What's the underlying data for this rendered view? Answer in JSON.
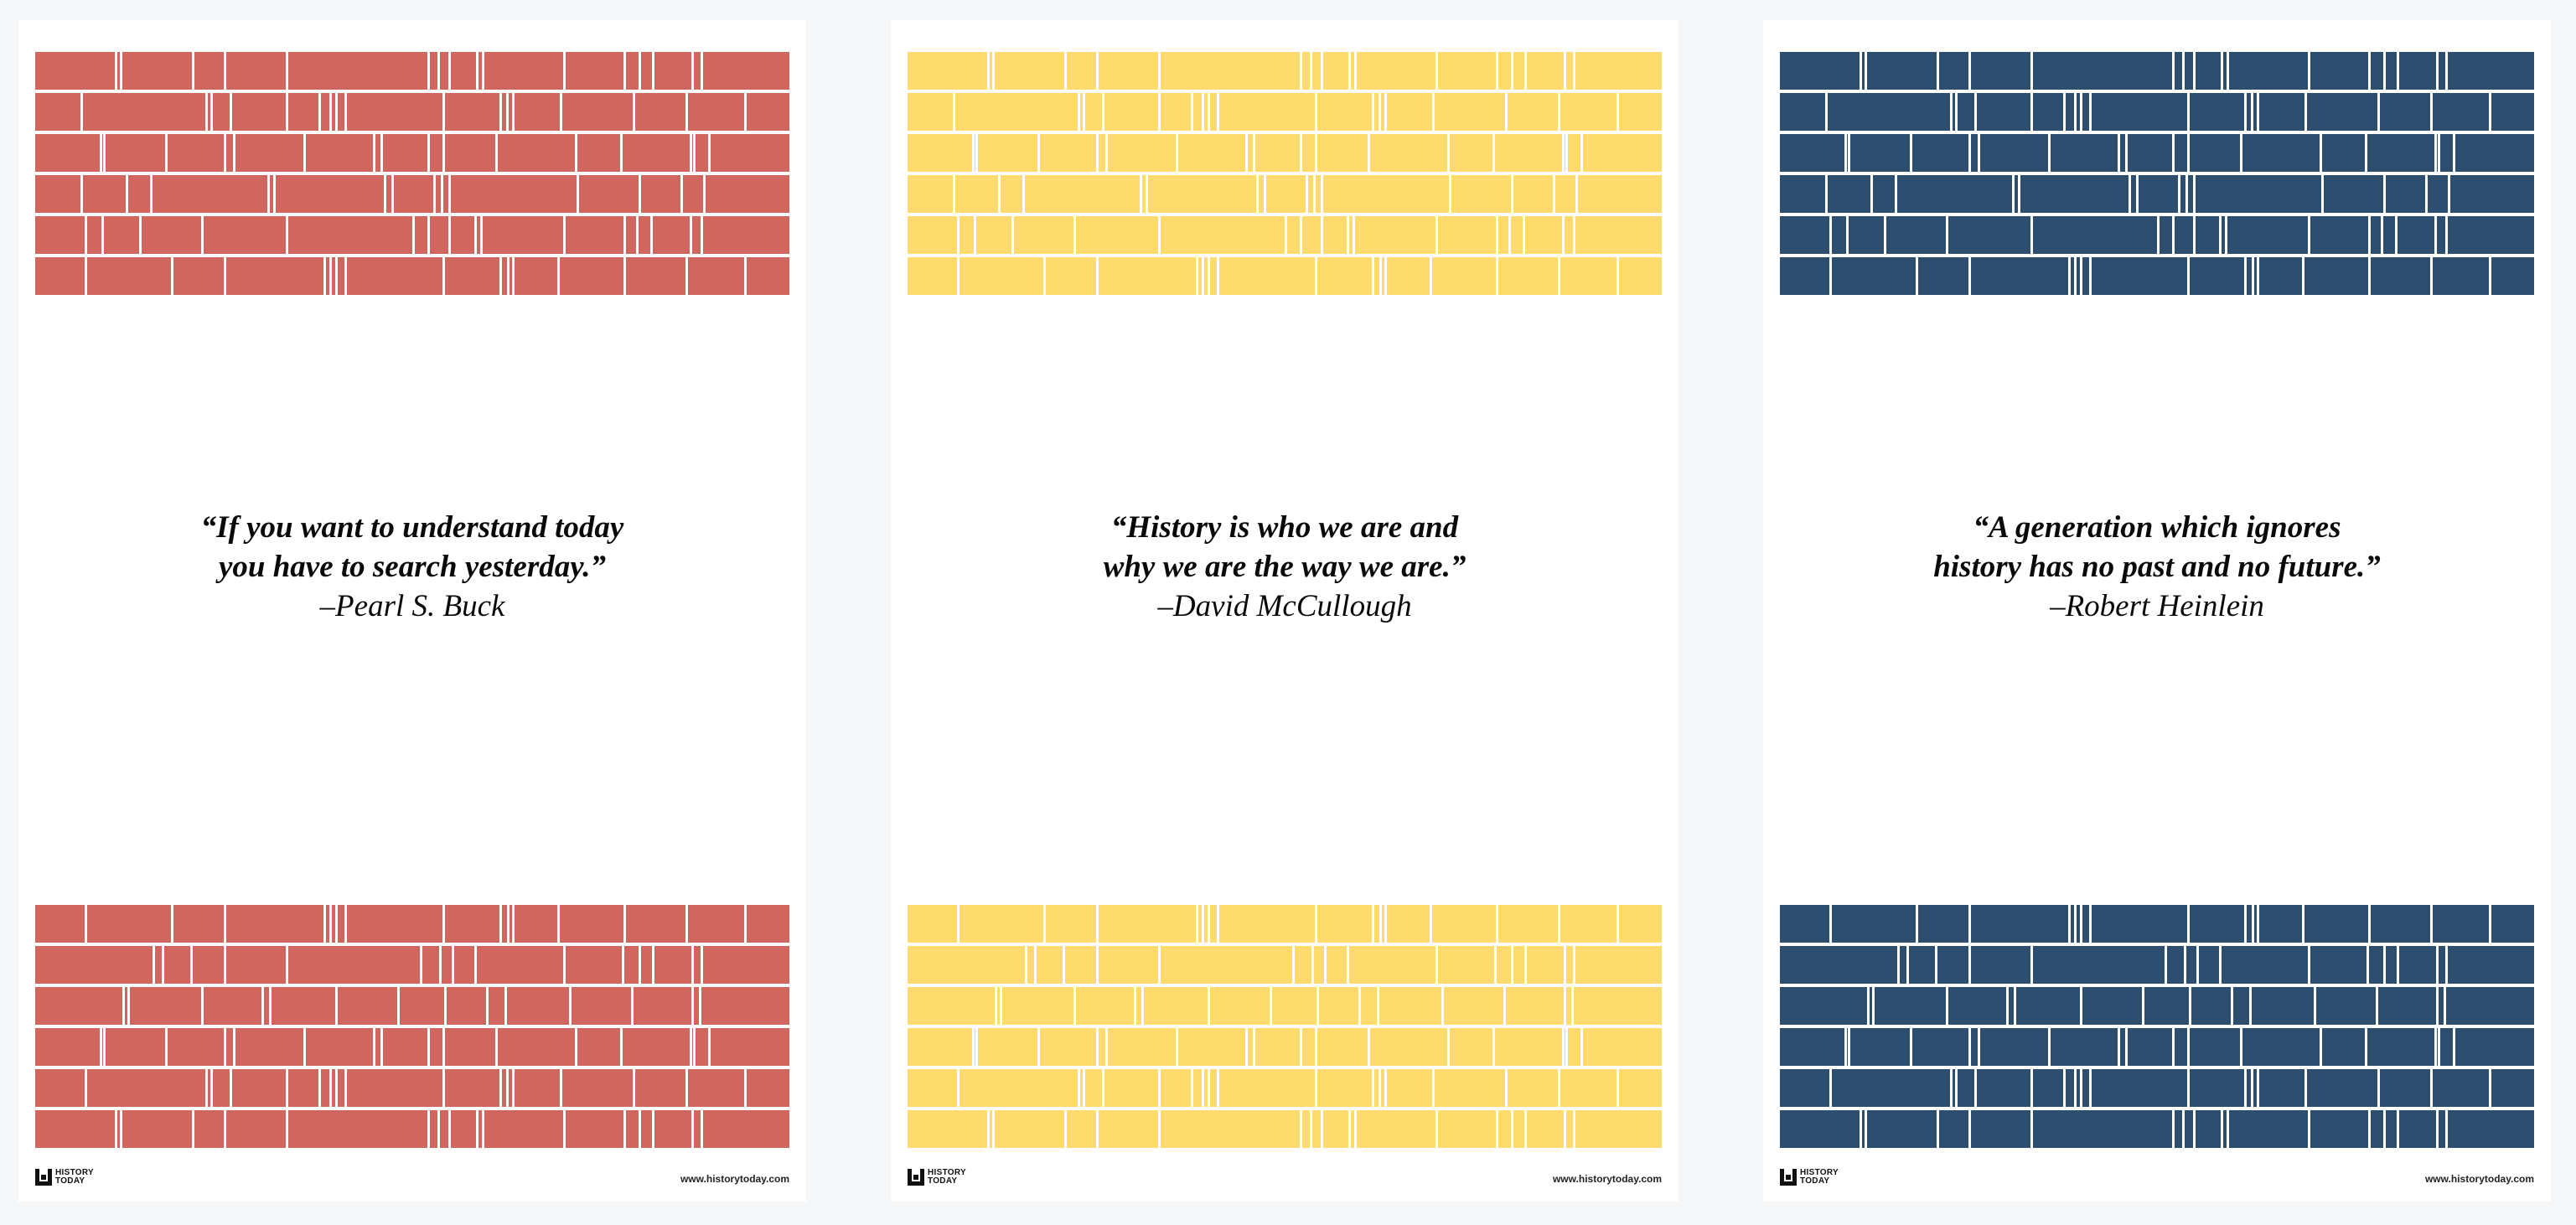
{
  "posters": [
    {
      "id": "p1",
      "color": "#d1665f",
      "quote_line1": "“If you want to understand today",
      "quote_line2": "you have to search yesterday.”",
      "author": "–Pearl S. Buck",
      "logo_line1": "HISTORY",
      "logo_line2": "TODAY",
      "website": "www.historytoday.com"
    },
    {
      "id": "p2",
      "color": "#ffdb6e",
      "quote_line1": "“History is who we are and",
      "quote_line2": "why we are the way we are.”",
      "author": "–David McCullough",
      "logo_line1": "HISTORY",
      "logo_line2": "TODAY",
      "website": "www.historytoday.com"
    },
    {
      "id": "p3",
      "color": "#2e4e70",
      "quote_line1": "“A generation which ignores",
      "quote_line2": "history has no past and no future.”",
      "author": "–Robert Heinlein",
      "logo_line1": "HISTORY",
      "logo_line2": "TODAY",
      "website": "www.historytoday.com"
    }
  ]
}
